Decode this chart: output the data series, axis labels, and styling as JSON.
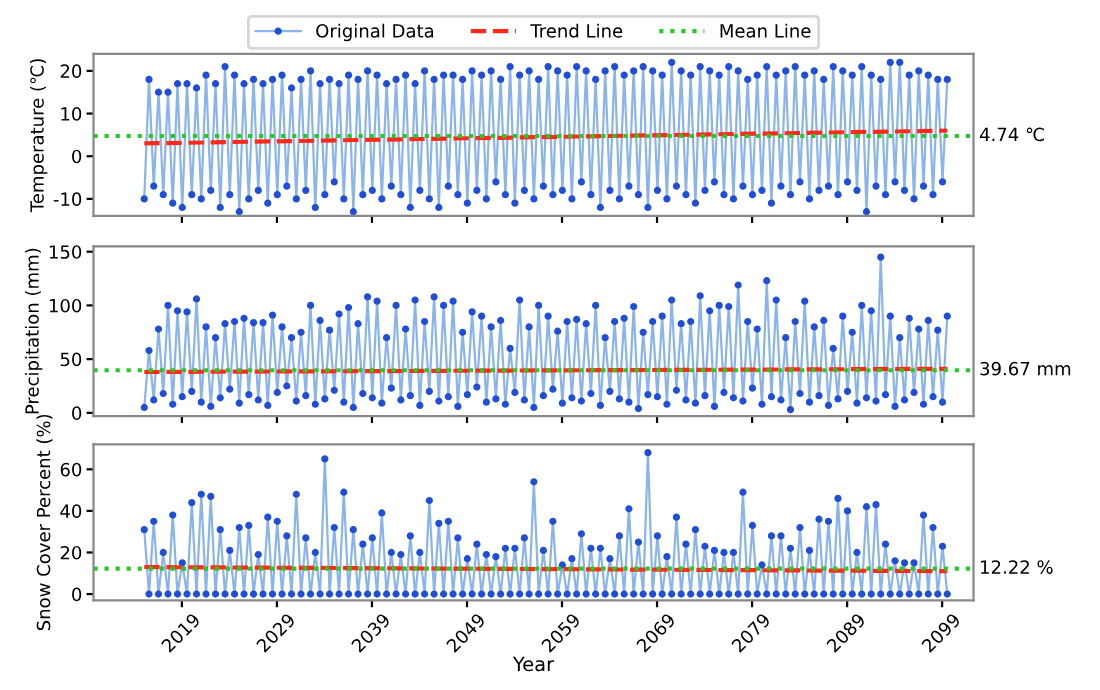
{
  "chart_data": [
    {
      "type": "line",
      "ylabel": "Temperature (℃)",
      "xlim": [
        2009.7,
        2102.3
      ],
      "ylim": [
        -14,
        24
      ],
      "yticks": [
        -10,
        0,
        10,
        20
      ],
      "xticks": [
        2019,
        2029,
        2039,
        2049,
        2059,
        2069,
        2079,
        2089,
        2099
      ],
      "tick_labels": "y",
      "grid": false,
      "legend": "top",
      "annotations": [
        "4.74 ℃"
      ],
      "series": [
        {
          "name": "Original Data",
          "color": "#1f4fd8",
          "marker": "circle",
          "line_style": "solid",
          "x": [
            2015.04,
            2015.54,
            2016.04,
            2016.54,
            2017.04,
            2017.54,
            2018.04,
            2018.54,
            2019.04,
            2019.54,
            2020.04,
            2020.54,
            2021.04,
            2021.54,
            2022.04,
            2022.54,
            2023.04,
            2023.54,
            2024.04,
            2024.54,
            2025.04,
            2025.54,
            2026.04,
            2026.54,
            2027.04,
            2027.54,
            2028.04,
            2028.54,
            2029.04,
            2029.54,
            2030.04,
            2030.54,
            2031.04,
            2031.54,
            2032.04,
            2032.54,
            2033.04,
            2033.54,
            2034.04,
            2034.54,
            2035.04,
            2035.54,
            2036.04,
            2036.54,
            2037.04,
            2037.54,
            2038.04,
            2038.54,
            2039.04,
            2039.54,
            2040.04,
            2040.54,
            2041.04,
            2041.54,
            2042.04,
            2042.54,
            2043.04,
            2043.54,
            2044.04,
            2044.54,
            2045.04,
            2045.54,
            2046.04,
            2046.54,
            2047.04,
            2047.54,
            2048.04,
            2048.54,
            2049.04,
            2049.54,
            2050.04,
            2050.54,
            2051.04,
            2051.54,
            2052.04,
            2052.54,
            2053.04,
            2053.54,
            2054.04,
            2054.54,
            2055.04,
            2055.54,
            2056.04,
            2056.54,
            2057.04,
            2057.54,
            2058.04,
            2058.54,
            2059.04,
            2059.54,
            2060.04,
            2060.54,
            2061.04,
            2061.54,
            2062.04,
            2062.54,
            2063.04,
            2063.54,
            2064.04,
            2064.54,
            2065.04,
            2065.54,
            2066.04,
            2066.54,
            2067.04,
            2067.54,
            2068.04,
            2068.54,
            2069.04,
            2069.54,
            2070.04,
            2070.54,
            2071.04,
            2071.54,
            2072.04,
            2072.54,
            2073.04,
            2073.54,
            2074.04,
            2074.54,
            2075.04,
            2075.54,
            2076.04,
            2076.54,
            2077.04,
            2077.54,
            2078.04,
            2078.54,
            2079.04,
            2079.54,
            2080.04,
            2080.54,
            2081.04,
            2081.54,
            2082.04,
            2082.54,
            2083.04,
            2083.54,
            2084.04,
            2084.54,
            2085.04,
            2085.54,
            2086.04,
            2086.54,
            2087.04,
            2087.54,
            2088.04,
            2088.54,
            2089.04,
            2089.54,
            2090.04,
            2090.54,
            2091.04,
            2091.54,
            2092.04,
            2092.54,
            2093.04,
            2093.54,
            2094.04,
            2094.54,
            2095.04,
            2095.54,
            2096.04,
            2096.54,
            2097.04,
            2097.54,
            2098.04,
            2098.54,
            2099.04,
            2099.54
          ],
          "values": [
            -10,
            18,
            -7,
            15,
            -9,
            15,
            -11,
            17,
            -12,
            17,
            -9,
            16,
            -10,
            19,
            -8,
            17,
            -12,
            21,
            -9,
            19,
            -13,
            17,
            -10,
            18,
            -8,
            17,
            -11,
            18,
            -9,
            19,
            -7,
            16,
            -10,
            18,
            -8,
            20,
            -12,
            17,
            -9,
            18,
            -6,
            17,
            -10,
            19,
            -13,
            18,
            -9,
            20,
            -8,
            19,
            -10,
            17,
            -7,
            18,
            -9,
            19,
            -12,
            17,
            -8,
            20,
            -10,
            18,
            -12,
            19,
            -7,
            19,
            -9,
            18,
            -11,
            20,
            -8,
            19,
            -10,
            20,
            -6,
            18,
            -9,
            21,
            -11,
            19,
            -8,
            20,
            -10,
            18,
            -7,
            21,
            -9,
            20,
            -8,
            19,
            -10,
            21,
            -6,
            20,
            -9,
            18,
            -12,
            20,
            -8,
            21,
            -10,
            19,
            -7,
            20,
            -9,
            21,
            -12,
            20,
            -8,
            19,
            -10,
            22,
            -7,
            20,
            -9,
            19,
            -11,
            21,
            -8,
            20,
            -6,
            19,
            -9,
            21,
            -10,
            20,
            -7,
            18,
            -9,
            19,
            -8,
            21,
            -11,
            19,
            -7,
            20,
            -9,
            21,
            -6,
            19,
            -10,
            20,
            -8,
            18,
            -7,
            21,
            -9,
            20,
            -6,
            19,
            -8,
            21,
            -13,
            19,
            -7,
            18,
            -9,
            22,
            -6,
            22,
            -8,
            19,
            -10,
            20,
            -7,
            19,
            -9,
            18,
            -6,
            18
          ]
        },
        {
          "name": "Trend Line",
          "type": "line",
          "color": "#ff2a1a",
          "marker": "none",
          "line_style": "dashed",
          "x": [
            2015.04,
            2099.54
          ],
          "values": [
            3,
            6
          ]
        },
        {
          "name": "Mean Line",
          "type": "line",
          "color": "#22cc22",
          "marker": "none",
          "line_style": "dotted",
          "x": [
            2009.7,
            2102.3
          ],
          "values": [
            4.74,
            4.74
          ]
        }
      ]
    },
    {
      "type": "line",
      "ylabel": "Precipitation (mm)",
      "xlim": [
        2009.7,
        2102.3
      ],
      "ylim": [
        -3,
        155
      ],
      "yticks": [
        0,
        50,
        100,
        150
      ],
      "xticks": [
        2019,
        2029,
        2039,
        2049,
        2059,
        2069,
        2079,
        2089,
        2099
      ],
      "tick_labels": "y",
      "grid": false,
      "annotations": [
        "39.67 mm"
      ],
      "series": [
        {
          "color": "#1f4fd8",
          "marker": "circle",
          "line_style": "solid",
          "x": [
            2015.04,
            2015.54,
            2016.04,
            2016.54,
            2017.04,
            2017.54,
            2018.04,
            2018.54,
            2019.04,
            2019.54,
            2020.04,
            2020.54,
            2021.04,
            2021.54,
            2022.04,
            2022.54,
            2023.04,
            2023.54,
            2024.04,
            2024.54,
            2025.04,
            2025.54,
            2026.04,
            2026.54,
            2027.04,
            2027.54,
            2028.04,
            2028.54,
            2029.04,
            2029.54,
            2030.04,
            2030.54,
            2031.04,
            2031.54,
            2032.04,
            2032.54,
            2033.04,
            2033.54,
            2034.04,
            2034.54,
            2035.04,
            2035.54,
            2036.04,
            2036.54,
            2037.04,
            2037.54,
            2038.04,
            2038.54,
            2039.04,
            2039.54,
            2040.04,
            2040.54,
            2041.04,
            2041.54,
            2042.04,
            2042.54,
            2043.04,
            2043.54,
            2044.04,
            2044.54,
            2045.04,
            2045.54,
            2046.04,
            2046.54,
            2047.04,
            2047.54,
            2048.04,
            2048.54,
            2049.04,
            2049.54,
            2050.04,
            2050.54,
            2051.04,
            2051.54,
            2052.04,
            2052.54,
            2053.04,
            2053.54,
            2054.04,
            2054.54,
            2055.04,
            2055.54,
            2056.04,
            2056.54,
            2057.04,
            2057.54,
            2058.04,
            2058.54,
            2059.04,
            2059.54,
            2060.04,
            2060.54,
            2061.04,
            2061.54,
            2062.04,
            2062.54,
            2063.04,
            2063.54,
            2064.04,
            2064.54,
            2065.04,
            2065.54,
            2066.04,
            2066.54,
            2067.04,
            2067.54,
            2068.04,
            2068.54,
            2069.04,
            2069.54,
            2070.04,
            2070.54,
            2071.04,
            2071.54,
            2072.04,
            2072.54,
            2073.04,
            2073.54,
            2074.04,
            2074.54,
            2075.04,
            2075.54,
            2076.04,
            2076.54,
            2077.04,
            2077.54,
            2078.04,
            2078.54,
            2079.04,
            2079.54,
            2080.04,
            2080.54,
            2081.04,
            2081.54,
            2082.04,
            2082.54,
            2083.04,
            2083.54,
            2084.04,
            2084.54,
            2085.04,
            2085.54,
            2086.04,
            2086.54,
            2087.04,
            2087.54,
            2088.04,
            2088.54,
            2089.04,
            2089.54,
            2090.04,
            2090.54,
            2091.04,
            2091.54,
            2092.04,
            2092.54,
            2093.04,
            2093.54,
            2094.04,
            2094.54,
            2095.04,
            2095.54,
            2096.04,
            2096.54,
            2097.04,
            2097.54,
            2098.04,
            2098.54,
            2099.04,
            2099.54
          ],
          "values": [
            5,
            58,
            12,
            78,
            18,
            100,
            8,
            95,
            15,
            94,
            20,
            106,
            10,
            80,
            6,
            70,
            14,
            83,
            22,
            85,
            9,
            88,
            17,
            84,
            12,
            84,
            7,
            91,
            19,
            80,
            25,
            70,
            11,
            75,
            16,
            100,
            8,
            86,
            13,
            77,
            21,
            92,
            10,
            98,
            5,
            83,
            18,
            108,
            14,
            104,
            9,
            70,
            23,
            100,
            12,
            78,
            16,
            105,
            7,
            85,
            20,
            108,
            11,
            100,
            15,
            104,
            6,
            75,
            17,
            94,
            24,
            90,
            10,
            80,
            13,
            86,
            8,
            60,
            19,
            105,
            12,
            80,
            5,
            100,
            16,
            90,
            22,
            76,
            9,
            85,
            14,
            87,
            11,
            83,
            18,
            100,
            7,
            70,
            20,
            85,
            13,
            88,
            10,
            99,
            4,
            75,
            17,
            85,
            15,
            90,
            8,
            105,
            21,
            83,
            12,
            85,
            9,
            109,
            16,
            95,
            6,
            100,
            19,
            99,
            14,
            119,
            11,
            85,
            23,
            78,
            8,
            123,
            15,
            105,
            12,
            70,
            3,
            85,
            18,
            104,
            10,
            80,
            16,
            86,
            7,
            60,
            13,
            90,
            20,
            75,
            9,
            100,
            14,
            95,
            11,
            145,
            17,
            90,
            6,
            70,
            12,
            88,
            19,
            78,
            8,
            86,
            15,
            77,
            10,
            90
          ]
        },
        {
          "type": "line",
          "color": "#ff2a1a",
          "marker": "none",
          "line_style": "dashed",
          "x": [
            2015.04,
            2099.54
          ],
          "values": [
            38,
            41
          ]
        },
        {
          "type": "line",
          "color": "#22cc22",
          "marker": "none",
          "line_style": "dotted",
          "x": [
            2009.7,
            2102.3
          ],
          "values": [
            39.67,
            39.67
          ]
        }
      ]
    },
    {
      "type": "line",
      "ylabel": "Snow Cover Percent (%)",
      "xlabel": "Year",
      "xlim": [
        2009.7,
        2102.3
      ],
      "ylim": [
        -3,
        72
      ],
      "yticks": [
        0,
        20,
        40,
        60
      ],
      "xticks": [
        2019,
        2029,
        2039,
        2049,
        2059,
        2069,
        2079,
        2089,
        2099
      ],
      "grid": false,
      "annotations": [
        "12.22 %"
      ],
      "series": [
        {
          "color": "#1f4fd8",
          "marker": "circle",
          "line_style": "solid",
          "x": [
            2015.04,
            2015.54,
            2016.04,
            2016.54,
            2017.04,
            2017.54,
            2018.04,
            2018.54,
            2019.04,
            2019.54,
            2020.04,
            2020.54,
            2021.04,
            2021.54,
            2022.04,
            2022.54,
            2023.04,
            2023.54,
            2024.04,
            2024.54,
            2025.04,
            2025.54,
            2026.04,
            2026.54,
            2027.04,
            2027.54,
            2028.04,
            2028.54,
            2029.04,
            2029.54,
            2030.04,
            2030.54,
            2031.04,
            2031.54,
            2032.04,
            2032.54,
            2033.04,
            2033.54,
            2034.04,
            2034.54,
            2035.04,
            2035.54,
            2036.04,
            2036.54,
            2037.04,
            2037.54,
            2038.04,
            2038.54,
            2039.04,
            2039.54,
            2040.04,
            2040.54,
            2041.04,
            2041.54,
            2042.04,
            2042.54,
            2043.04,
            2043.54,
            2044.04,
            2044.54,
            2045.04,
            2045.54,
            2046.04,
            2046.54,
            2047.04,
            2047.54,
            2048.04,
            2048.54,
            2049.04,
            2049.54,
            2050.04,
            2050.54,
            2051.04,
            2051.54,
            2052.04,
            2052.54,
            2053.04,
            2053.54,
            2054.04,
            2054.54,
            2055.04,
            2055.54,
            2056.04,
            2056.54,
            2057.04,
            2057.54,
            2058.04,
            2058.54,
            2059.04,
            2059.54,
            2060.04,
            2060.54,
            2061.04,
            2061.54,
            2062.04,
            2062.54,
            2063.04,
            2063.54,
            2064.04,
            2064.54,
            2065.04,
            2065.54,
            2066.04,
            2066.54,
            2067.04,
            2067.54,
            2068.04,
            2068.54,
            2069.04,
            2069.54,
            2070.04,
            2070.54,
            2071.04,
            2071.54,
            2072.04,
            2072.54,
            2073.04,
            2073.54,
            2074.04,
            2074.54,
            2075.04,
            2075.54,
            2076.04,
            2076.54,
            2077.04,
            2077.54,
            2078.04,
            2078.54,
            2079.04,
            2079.54,
            2080.04,
            2080.54,
            2081.04,
            2081.54,
            2082.04,
            2082.54,
            2083.04,
            2083.54,
            2084.04,
            2084.54,
            2085.04,
            2085.54,
            2086.04,
            2086.54,
            2087.04,
            2087.54,
            2088.04,
            2088.54,
            2089.04,
            2089.54,
            2090.04,
            2090.54,
            2091.04,
            2091.54,
            2092.04,
            2092.54,
            2093.04,
            2093.54,
            2094.04,
            2094.54,
            2095.04,
            2095.54,
            2096.04,
            2096.54,
            2097.04,
            2097.54,
            2098.04,
            2098.54,
            2099.04,
            2099.54
          ],
          "values": [
            31,
            0,
            35,
            0,
            20,
            0,
            38,
            0,
            15,
            0,
            44,
            0,
            48,
            0,
            47,
            0,
            31,
            0,
            21,
            0,
            32,
            0,
            33,
            0,
            19,
            0,
            37,
            0,
            35,
            0,
            28,
            0,
            48,
            0,
            27,
            0,
            20,
            0,
            65,
            0,
            32,
            0,
            49,
            0,
            31,
            0,
            24,
            0,
            27,
            0,
            39,
            0,
            20,
            0,
            19,
            0,
            28,
            0,
            20,
            0,
            45,
            0,
            34,
            0,
            35,
            0,
            27,
            0,
            17,
            0,
            24,
            0,
            19,
            0,
            18,
            0,
            22,
            0,
            22,
            0,
            27,
            0,
            54,
            0,
            21,
            0,
            35,
            0,
            14,
            0,
            17,
            0,
            29,
            0,
            22,
            0,
            22,
            0,
            17,
            0,
            28,
            0,
            41,
            0,
            25,
            0,
            68,
            0,
            28,
            0,
            18,
            0,
            37,
            0,
            24,
            0,
            31,
            0,
            23,
            0,
            21,
            0,
            20,
            0,
            20,
            0,
            49,
            0,
            33,
            0,
            14,
            0,
            28,
            0,
            28,
            0,
            22,
            0,
            32,
            0,
            21,
            0,
            36,
            0,
            35,
            0,
            46,
            0,
            40,
            0,
            20,
            0,
            42,
            0,
            43,
            0,
            24,
            0,
            16,
            0,
            15,
            0,
            15,
            0,
            38,
            0,
            32,
            0,
            23,
            0
          ]
        },
        {
          "type": "line",
          "color": "#ff2a1a",
          "marker": "none",
          "line_style": "dashed",
          "x": [
            2015.04,
            2099.54
          ],
          "values": [
            13,
            11
          ]
        },
        {
          "type": "line",
          "color": "#22cc22",
          "marker": "none",
          "line_style": "dotted",
          "x": [
            2009.7,
            2102.3
          ],
          "values": [
            12.22,
            12.22
          ]
        }
      ]
    }
  ]
}
